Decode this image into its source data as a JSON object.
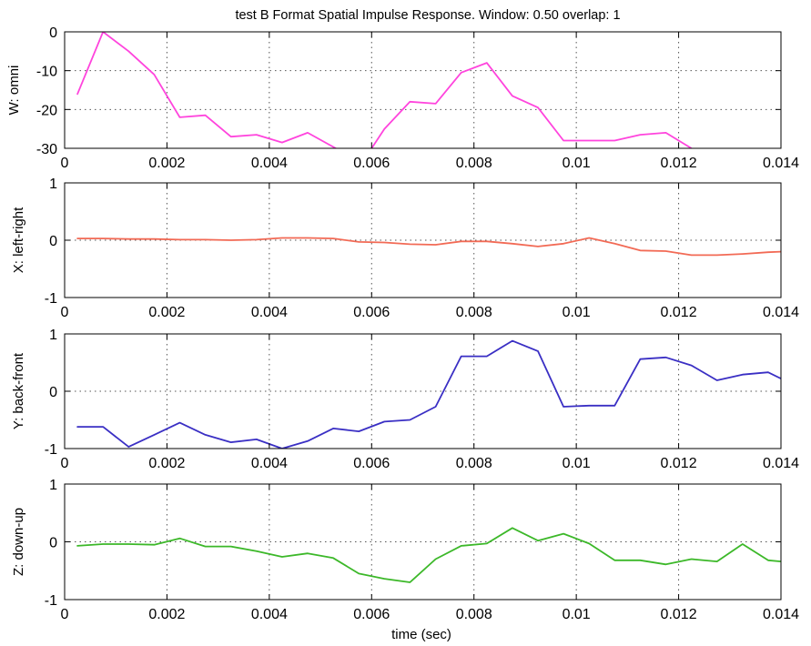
{
  "title": "test   B Format Spatial Impulse Response.  Window: 0.50  overlap: 1",
  "xlabel": "time (sec)",
  "chart_data": [
    {
      "type": "line",
      "ylabel": "W: omni",
      "color": "#ff44dd",
      "xlim": [
        0,
        0.014
      ],
      "ylim": [
        -30,
        0
      ],
      "xticks": [
        "0",
        "0.002",
        "0.004",
        "0.006",
        "0.008",
        "0.01",
        "0.012",
        "0.014"
      ],
      "yticks": [
        "0",
        "-10",
        "-20",
        "-30"
      ],
      "grid": true,
      "segments": [
        {
          "x": [
            0.00025,
            0.00075,
            0.00125,
            0.00175,
            0.00225,
            0.00275,
            0.00325,
            0.00375,
            0.00425,
            0.00475,
            0.0053
          ],
          "y": [
            -16,
            0,
            -5,
            -11,
            -22,
            -21.5,
            -27,
            -26.5,
            -28.5,
            -26,
            -30
          ]
        },
        {
          "x": [
            0.006,
            0.00625,
            0.00675,
            0.00725,
            0.00775,
            0.00825,
            0.00875,
            0.00925,
            0.00975,
            0.01025,
            0.01075,
            0.01125,
            0.01175,
            0.01225
          ],
          "y": [
            -30,
            -25,
            -18,
            -18.5,
            -10.5,
            -8,
            -16.5,
            -19.5,
            -28,
            -28,
            -28,
            -26.5,
            -26,
            -30
          ]
        }
      ]
    },
    {
      "type": "line",
      "ylabel": "X: left-right",
      "color": "#f26a55",
      "xlim": [
        0,
        0.014
      ],
      "ylim": [
        -1,
        1
      ],
      "xticks": [
        "0",
        "0.002",
        "0.004",
        "0.006",
        "0.008",
        "0.01",
        "0.012",
        "0.014"
      ],
      "yticks": [
        "1",
        "0",
        "-1"
      ],
      "grid": true,
      "segments": [
        {
          "x": [
            0.00025,
            0.00075,
            0.00125,
            0.00175,
            0.00225,
            0.00275,
            0.00325,
            0.00375,
            0.00425,
            0.00475,
            0.00525,
            0.00575,
            0.00625,
            0.00675,
            0.00725,
            0.00775,
            0.00825,
            0.00875,
            0.00925,
            0.00975,
            0.01025,
            0.01075,
            0.01125,
            0.01175,
            0.01225,
            0.01275,
            0.01325,
            0.01375,
            0.014
          ],
          "y": [
            0.03,
            0.03,
            0.02,
            0.02,
            0.01,
            0.01,
            0.0,
            0.01,
            0.04,
            0.04,
            0.03,
            -0.03,
            -0.04,
            -0.07,
            -0.08,
            -0.02,
            -0.02,
            -0.06,
            -0.11,
            -0.06,
            0.04,
            -0.06,
            -0.18,
            -0.19,
            -0.26,
            -0.26,
            -0.24,
            -0.21,
            -0.2
          ]
        }
      ]
    },
    {
      "type": "line",
      "ylabel": "Y: back-front",
      "color": "#3a2fc4",
      "xlim": [
        0,
        0.014
      ],
      "ylim": [
        -1,
        1
      ],
      "xticks": [
        "0",
        "0.002",
        "0.004",
        "0.006",
        "0.008",
        "0.01",
        "0.012",
        "0.014"
      ],
      "yticks": [
        "1",
        "0",
        "-1"
      ],
      "grid": true,
      "segments": [
        {
          "x": [
            0.00025,
            0.00075,
            0.00125,
            0.00175,
            0.00225,
            0.00275,
            0.00325,
            0.00375,
            0.00425,
            0.00475,
            0.00525,
            0.00575,
            0.00625,
            0.00675,
            0.00725,
            0.00775,
            0.00825,
            0.00875,
            0.00925,
            0.00975,
            0.01025,
            0.01075,
            0.01125,
            0.01175,
            0.01225,
            0.01275,
            0.01325,
            0.01375,
            0.014
          ],
          "y": [
            -0.62,
            -0.62,
            -0.97,
            -0.76,
            -0.55,
            -0.76,
            -0.89,
            -0.84,
            -1.0,
            -0.87,
            -0.65,
            -0.7,
            -0.53,
            -0.5,
            -0.27,
            0.61,
            0.61,
            0.88,
            0.7,
            -0.27,
            -0.25,
            -0.25,
            0.56,
            0.59,
            0.45,
            0.19,
            0.29,
            0.33,
            0.22
          ]
        }
      ]
    },
    {
      "type": "line",
      "ylabel": "Z: down-up",
      "color": "#3cb829",
      "xlim": [
        0,
        0.014
      ],
      "ylim": [
        -1,
        1
      ],
      "xticks": [
        "0",
        "0.002",
        "0.004",
        "0.006",
        "0.008",
        "0.01",
        "0.012",
        "0.014"
      ],
      "yticks": [
        "1",
        "0",
        "-1"
      ],
      "grid": true,
      "segments": [
        {
          "x": [
            0.00025,
            0.00075,
            0.00125,
            0.00175,
            0.00225,
            0.00275,
            0.00325,
            0.00375,
            0.00425,
            0.00475,
            0.00525,
            0.00575,
            0.00625,
            0.00675,
            0.00725,
            0.00775,
            0.00825,
            0.00875,
            0.00925,
            0.00975,
            0.01025,
            0.01075,
            0.01125,
            0.01175,
            0.01225,
            0.01275,
            0.01325,
            0.01375,
            0.014
          ],
          "y": [
            -0.07,
            -0.04,
            -0.04,
            -0.05,
            0.06,
            -0.08,
            -0.08,
            -0.16,
            -0.26,
            -0.2,
            -0.28,
            -0.55,
            -0.64,
            -0.7,
            -0.3,
            -0.07,
            -0.03,
            0.24,
            0.02,
            0.14,
            -0.03,
            -0.32,
            -0.32,
            -0.39,
            -0.3,
            -0.34,
            -0.04,
            -0.32,
            -0.34
          ]
        }
      ]
    }
  ]
}
